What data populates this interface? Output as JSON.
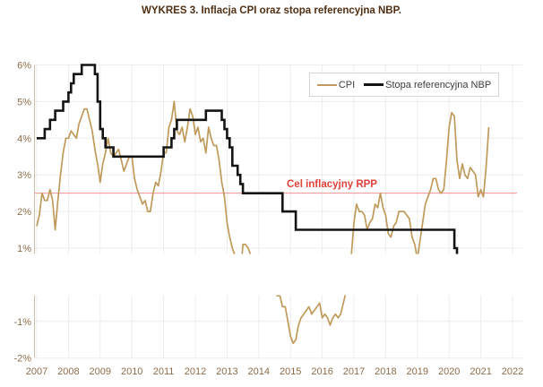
{
  "title": "WYKRES 3. Inflacja CPI oraz stopa referencyjna NBP.",
  "legend": {
    "items": [
      {
        "label": "CPI"
      },
      {
        "label": "Stopa referencyjna NBP"
      }
    ]
  },
  "target": {
    "label": "Cel inflacyjny RPP",
    "value": 2.5
  },
  "colors": {
    "cpi": "#bf9a5a",
    "nbp": "#141414",
    "target_line": "#f29090",
    "target_label": "#e4403a",
    "title_text": "#522f13",
    "axis_text": "#8d6c4a",
    "gridline": "#efecea",
    "axis_line": "#cbbda6",
    "legend_border": "#d6d6d6",
    "legend_text": "#3c3c3c"
  },
  "axes": {
    "y_tick_values": [
      6,
      5,
      4,
      3,
      2,
      1,
      -1,
      -2
    ],
    "y_tick_labels": [
      "6%",
      "5%",
      "4%",
      "3%",
      "2%",
      "1%",
      "-1%",
      "-2%"
    ],
    "x_tick_values": [
      2007,
      2008,
      2009,
      2010,
      2011,
      2012,
      2013,
      2014,
      2015,
      2016,
      2017,
      2018,
      2019,
      2020,
      2021,
      2022
    ],
    "x_tick_labels": [
      "2007",
      "2008",
      "2009",
      "2010",
      "2011",
      "2012",
      "2013",
      "2014",
      "2015",
      "2016",
      "2017",
      "2018",
      "2019",
      "2020",
      "2021",
      "2022"
    ]
  },
  "chart_data": {
    "type": "line",
    "title": "WYKRES 3. Inflacja CPI oraz stopa referencyjna NBP.",
    "xlabel": "",
    "ylabel": "",
    "xlim": [
      2007,
      2022.2
    ],
    "ylim": [
      -2.1,
      6.2
    ],
    "grid": true,
    "legend_position": "top-right",
    "axis_break": {
      "hidden_value_range": [
        0.88,
        -0.27
      ],
      "note": "white band splits plot into upper and lower panels"
    },
    "target_line": {
      "label": "Cel inflacyjny RPP",
      "value": 2.5
    },
    "series": [
      {
        "name": "CPI",
        "kind": "monthly",
        "start": "2007-01",
        "values": [
          1.6,
          1.9,
          2.5,
          2.3,
          2.3,
          2.6,
          2.3,
          1.5,
          2.3,
          3.0,
          3.6,
          4.0,
          4.0,
          4.2,
          4.1,
          4.0,
          4.4,
          4.6,
          4.8,
          4.8,
          4.5,
          4.2,
          3.7,
          3.3,
          2.8,
          3.3,
          3.6,
          4.0,
          3.6,
          3.5,
          3.6,
          3.7,
          3.4,
          3.1,
          3.3,
          3.5,
          3.5,
          2.9,
          2.6,
          2.4,
          2.2,
          2.3,
          2.0,
          2.0,
          2.5,
          2.8,
          2.7,
          3.1,
          3.6,
          3.6,
          4.3,
          4.5,
          5.0,
          4.2,
          4.1,
          4.3,
          3.9,
          4.3,
          4.8,
          4.6,
          4.1,
          4.3,
          3.9,
          4.0,
          3.6,
          4.3,
          4.0,
          3.8,
          3.8,
          3.4,
          2.8,
          2.4,
          1.7,
          1.3,
          1.0,
          0.8,
          0.5,
          0.2,
          1.1,
          1.1,
          1.0,
          0.8,
          0.6,
          0.7,
          0.5,
          0.7,
          0.7,
          0.3,
          0.2,
          0.3,
          -0.2,
          -0.3,
          -0.3,
          -0.6,
          -0.6,
          -1.0,
          -1.4,
          -1.6,
          -1.5,
          -1.1,
          -0.9,
          -0.8,
          -0.7,
          -0.6,
          -0.8,
          -0.7,
          -0.6,
          -0.5,
          -0.9,
          -0.8,
          -0.9,
          -1.1,
          -0.9,
          -0.8,
          -0.9,
          -0.8,
          -0.5,
          -0.2,
          0.0,
          0.8,
          1.7,
          2.2,
          2.0,
          2.0,
          1.9,
          1.5,
          1.7,
          1.8,
          2.2,
          2.1,
          2.5,
          2.1,
          1.9,
          1.4,
          1.3,
          1.6,
          1.7,
          2.0,
          2.0,
          2.0,
          1.9,
          1.8,
          1.3,
          1.1,
          0.7,
          1.2,
          1.7,
          2.2,
          2.4,
          2.6,
          2.9,
          2.9,
          2.6,
          2.5,
          2.6,
          3.4,
          4.3,
          4.7,
          4.6,
          3.4,
          2.9,
          3.3,
          3.0,
          2.9,
          3.2,
          3.1,
          3.0,
          2.4,
          2.6,
          2.4,
          3.2,
          4.3
        ]
      },
      {
        "name": "Stopa referencyjna NBP",
        "kind": "step",
        "end": "2021-05",
        "steps": [
          [
            "2007-01",
            4.0
          ],
          [
            "2007-04",
            4.25
          ],
          [
            "2007-06",
            4.5
          ],
          [
            "2007-08",
            4.75
          ],
          [
            "2007-11",
            5.0
          ],
          [
            "2008-01",
            5.25
          ],
          [
            "2008-02",
            5.5
          ],
          [
            "2008-03",
            5.75
          ],
          [
            "2008-06",
            6.0
          ],
          [
            "2008-11",
            5.75
          ],
          [
            "2008-12",
            5.0
          ],
          [
            "2009-01",
            4.25
          ],
          [
            "2009-02",
            4.0
          ],
          [
            "2009-03",
            3.75
          ],
          [
            "2009-06",
            3.5
          ],
          [
            "2011-01",
            3.75
          ],
          [
            "2011-04",
            4.0
          ],
          [
            "2011-05",
            4.25
          ],
          [
            "2011-06",
            4.5
          ],
          [
            "2012-05",
            4.75
          ],
          [
            "2012-11",
            4.5
          ],
          [
            "2012-12",
            4.25
          ],
          [
            "2013-01",
            4.0
          ],
          [
            "2013-02",
            3.75
          ],
          [
            "2013-03",
            3.25
          ],
          [
            "2013-05",
            3.0
          ],
          [
            "2013-06",
            2.75
          ],
          [
            "2013-07",
            2.5
          ],
          [
            "2014-10",
            2.0
          ],
          [
            "2015-03",
            1.5
          ],
          [
            "2020-03",
            1.0
          ],
          [
            "2020-04",
            0.5
          ],
          [
            "2020-05",
            0.1
          ]
        ]
      }
    ]
  }
}
